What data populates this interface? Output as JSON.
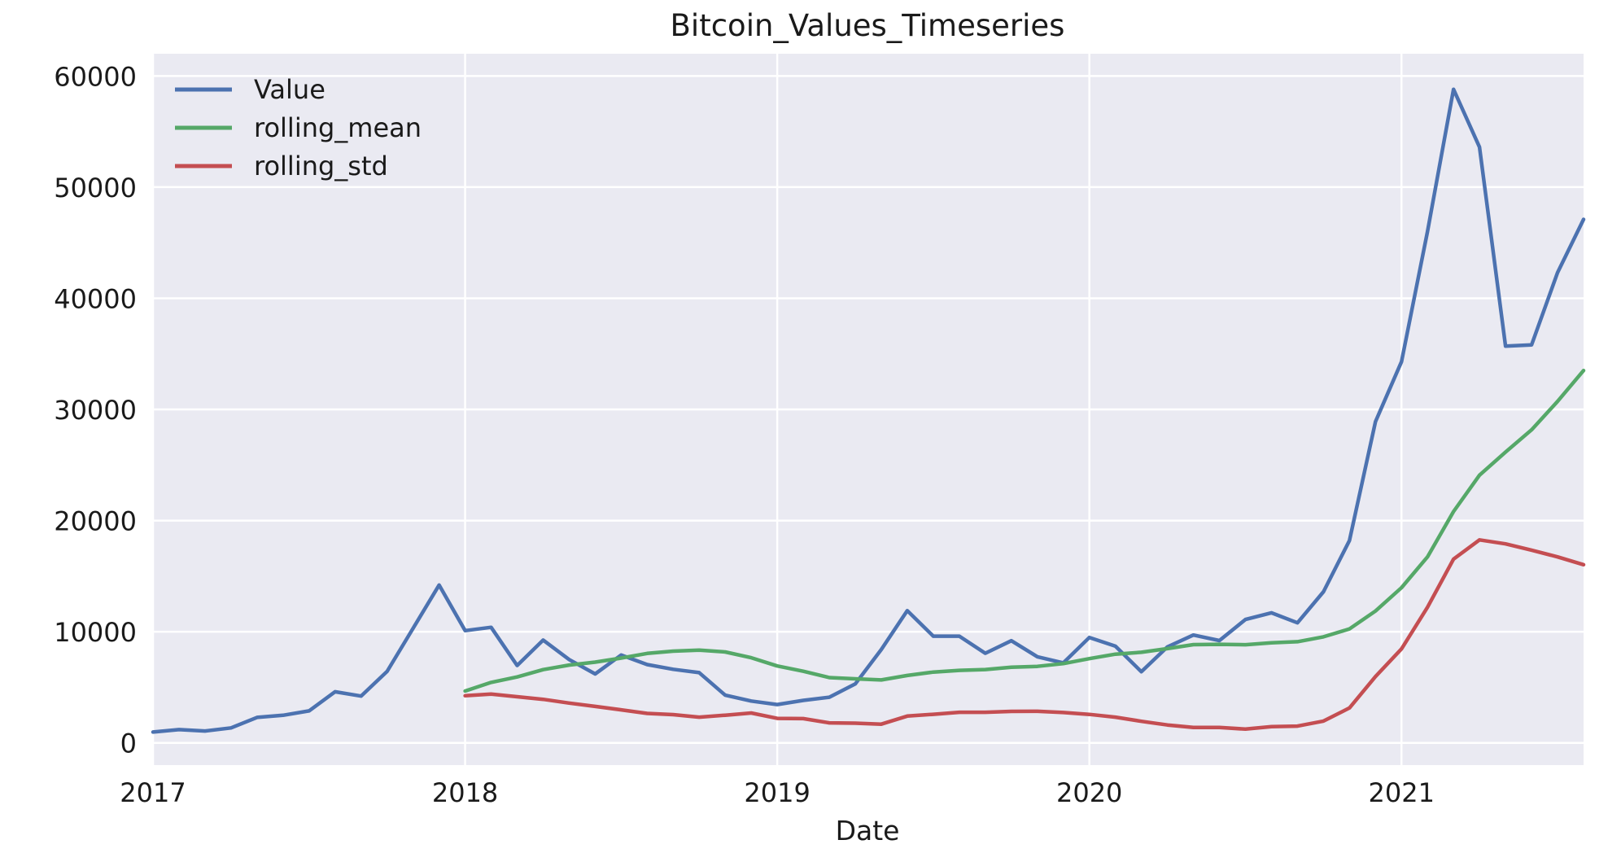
{
  "chart_data": {
    "type": "line",
    "title": "Bitcoin_Values_Timeseries",
    "xlabel": "Date",
    "ylabel": "",
    "xlim": [
      "2017-01",
      "2021-08"
    ],
    "ylim": [
      -2000,
      62000
    ],
    "x_ticks": [
      "2017",
      "2018",
      "2019",
      "2020",
      "2021"
    ],
    "y_ticks": [
      0,
      10000,
      20000,
      30000,
      40000,
      50000,
      60000
    ],
    "grid": true,
    "legend_position": "upper left",
    "style": {
      "background": "#EAEAF2",
      "grid_color": "#FFFFFF"
    },
    "x": [
      "2017-01",
      "2017-02",
      "2017-03",
      "2017-04",
      "2017-05",
      "2017-06",
      "2017-07",
      "2017-08",
      "2017-09",
      "2017-10",
      "2017-11",
      "2017-12",
      "2018-01",
      "2018-02",
      "2018-03",
      "2018-04",
      "2018-05",
      "2018-06",
      "2018-07",
      "2018-08",
      "2018-09",
      "2018-10",
      "2018-11",
      "2018-12",
      "2019-01",
      "2019-02",
      "2019-03",
      "2019-04",
      "2019-05",
      "2019-06",
      "2019-07",
      "2019-08",
      "2019-09",
      "2019-10",
      "2019-11",
      "2019-12",
      "2020-01",
      "2020-02",
      "2020-03",
      "2020-04",
      "2020-05",
      "2020-06",
      "2020-07",
      "2020-08",
      "2020-09",
      "2020-10",
      "2020-11",
      "2020-12",
      "2021-01",
      "2021-02",
      "2021-03",
      "2021-04",
      "2021-05",
      "2021-06",
      "2021-07",
      "2021-08"
    ],
    "series": [
      {
        "name": "Value",
        "color": "#4C72B0",
        "values": [
          970,
          1190,
          1070,
          1350,
          2290,
          2480,
          2880,
          4600,
          4210,
          6430,
          10300,
          14200,
          10100,
          10400,
          6960,
          9250,
          7500,
          6200,
          7900,
          7040,
          6620,
          6320,
          4290,
          3760,
          3450,
          3820,
          4110,
          5300,
          8400,
          11900,
          9600,
          9600,
          8060,
          9190,
          7750,
          7200,
          9480,
          8700,
          6400,
          8630,
          9700,
          9200,
          11100,
          11700,
          10800,
          13600,
          18200,
          28900,
          34300,
          46000,
          58800,
          53600,
          35700,
          35800,
          42300,
          47100
        ]
      },
      {
        "name": "rolling_mean",
        "color": "#55A868",
        "values": [
          null,
          null,
          null,
          null,
          null,
          null,
          null,
          null,
          null,
          null,
          null,
          null,
          4660,
          5440,
          5930,
          6590,
          7000,
          7260,
          7630,
          8050,
          8250,
          8350,
          8180,
          7660,
          6920,
          6440,
          5870,
          5760,
          5660,
          6060,
          6370,
          6520,
          6600,
          6800,
          6880,
          7130,
          7580,
          7980,
          8150,
          8480,
          8840,
          8870,
          8830,
          9000,
          9100,
          9540,
          10250,
          11860,
          13960,
          16730,
          20810,
          24080,
          26160,
          28160,
          30720,
          33500
        ]
      },
      {
        "name": "rolling_std",
        "color": "#C44E52",
        "values": [
          null,
          null,
          null,
          null,
          null,
          null,
          null,
          null,
          null,
          null,
          null,
          null,
          4240,
          4390,
          4150,
          3920,
          3580,
          3280,
          2970,
          2650,
          2540,
          2310,
          2490,
          2690,
          2200,
          2180,
          1800,
          1770,
          1680,
          2410,
          2570,
          2750,
          2750,
          2830,
          2840,
          2730,
          2560,
          2310,
          1940,
          1610,
          1390,
          1390,
          1240,
          1460,
          1510,
          1960,
          3140,
          5970,
          8460,
          12200,
          16530,
          18260,
          17900,
          17340,
          16730,
          16030
        ]
      }
    ]
  }
}
